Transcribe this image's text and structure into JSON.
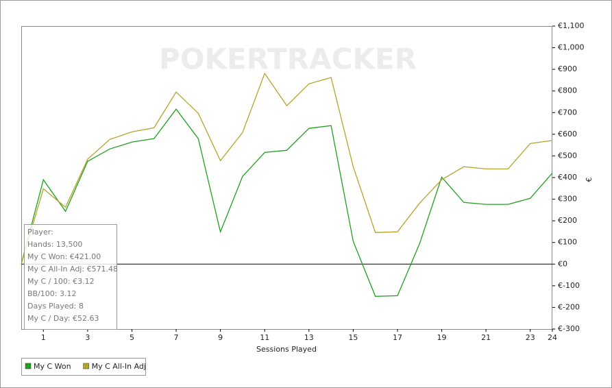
{
  "chart_data": {
    "type": "line",
    "watermark": "POKERTRACKER",
    "xlabel": "Sessions Played",
    "ylabel": "€",
    "x": [
      0,
      1,
      2,
      3,
      4,
      5,
      6,
      7,
      8,
      9,
      10,
      11,
      12,
      13,
      14,
      15,
      16,
      17,
      18,
      19,
      20,
      21,
      22,
      23,
      24
    ],
    "xlim": [
      0,
      24
    ],
    "xticks": [
      1,
      3,
      5,
      7,
      9,
      11,
      13,
      15,
      17,
      19,
      21,
      23,
      24
    ],
    "ylim": [
      -300,
      1100
    ],
    "yticks": [
      {
        "value": -300,
        "label": "€-300"
      },
      {
        "value": -200,
        "label": "€-200"
      },
      {
        "value": -100,
        "label": "€-100"
      },
      {
        "value": 0,
        "label": "€0"
      },
      {
        "value": 100,
        "label": "€100"
      },
      {
        "value": 200,
        "label": "€200"
      },
      {
        "value": 300,
        "label": "€300"
      },
      {
        "value": 400,
        "label": "€400"
      },
      {
        "value": 500,
        "label": "€500"
      },
      {
        "value": 600,
        "label": "€600"
      },
      {
        "value": 700,
        "label": "€700"
      },
      {
        "value": 800,
        "label": "€800"
      },
      {
        "value": 900,
        "label": "€900"
      },
      {
        "value": 1000,
        "label": "€1,000"
      },
      {
        "value": 1100,
        "label": "€1,100"
      }
    ],
    "zero_line": true,
    "series": [
      {
        "name": "My C Won",
        "color": "#1fa01f",
        "values": [
          0,
          390,
          244,
          475,
          532,
          564,
          580,
          716,
          580,
          149,
          405,
          516,
          526,
          627,
          640,
          105,
          -149,
          -146,
          95,
          402,
          285,
          276,
          276,
          304,
          421
        ]
      },
      {
        "name": "My C All-In Adj",
        "color": "#b4a428",
        "values": [
          0,
          348,
          263,
          485,
          576,
          611,
          630,
          795,
          697,
          478,
          608,
          881,
          732,
          833,
          862,
          450,
          146,
          149,
          282,
          390,
          450,
          440,
          440,
          557,
          571.48
        ]
      }
    ],
    "info_box": [
      "Player:",
      "Hands: 13,500",
      "My C Won: €421.00",
      "My C All-In Adj: €571.48",
      "My C / 100: €3.12",
      "BB/100: 3.12",
      "Days Played: 8",
      "My C / Day: €52.63"
    ]
  }
}
